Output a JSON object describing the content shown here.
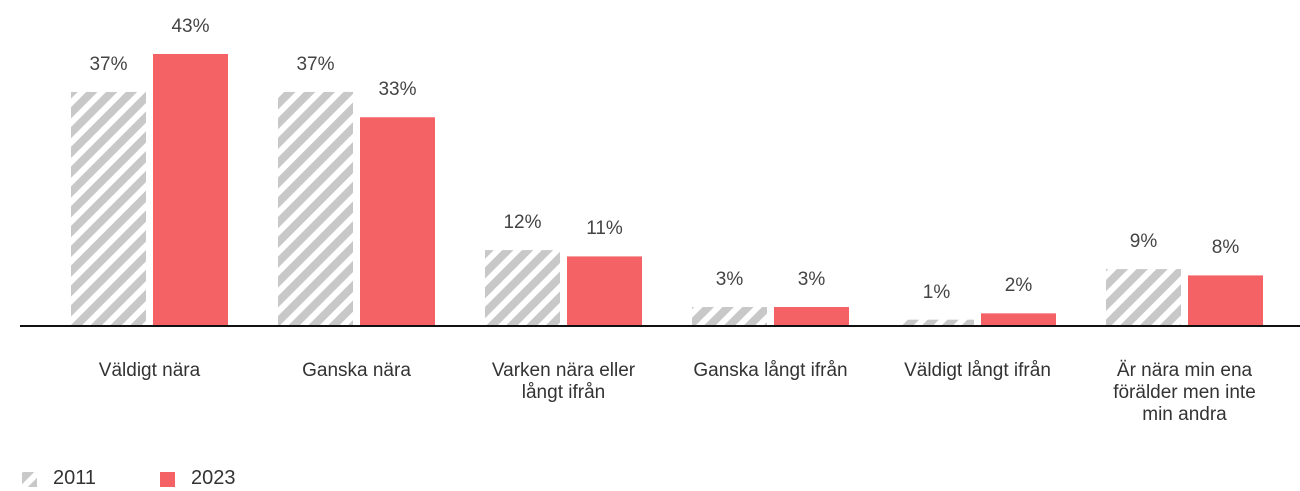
{
  "chart_data": {
    "type": "bar",
    "categories": [
      "Väldigt nära",
      "Ganska nära",
      "Varken nära eller långt ifrån",
      "Ganska långt ifrån",
      "Väldigt långt ifrån",
      "Är nära min ena förälder men inte min andra"
    ],
    "series": [
      {
        "name": "2011",
        "color": "#c8c8c8",
        "hatch": true,
        "values": [
          37,
          37,
          12,
          3,
          1,
          9
        ],
        "value_labels": [
          "37%",
          "37%",
          "12%",
          "3%",
          "1%",
          "9%"
        ]
      },
      {
        "name": "2023",
        "color": "#f46266",
        "hatch": false,
        "values": [
          43,
          33,
          11,
          3,
          2,
          8
        ],
        "value_labels": [
          "43%",
          "33%",
          "11%",
          "3%",
          "2%",
          "8%"
        ]
      }
    ]
  }
}
